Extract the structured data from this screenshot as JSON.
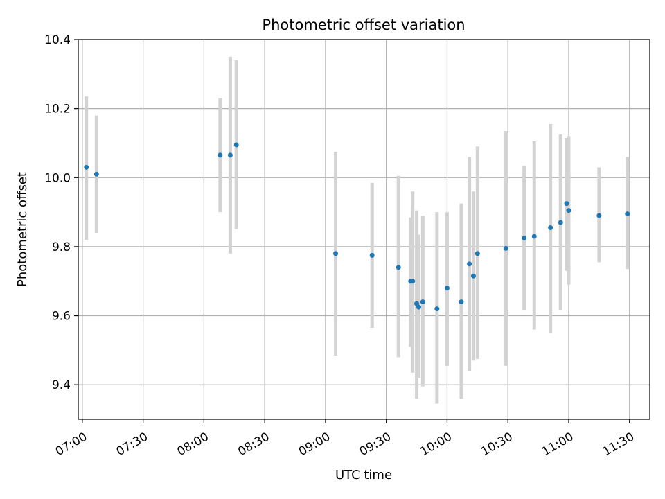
{
  "chart_data": {
    "type": "scatter",
    "title": "Photometric offset variation",
    "xlabel": "UTC time",
    "ylabel": "Photometric offset",
    "xlim": [
      "06:58",
      "11:40"
    ],
    "ylim": [
      9.3,
      10.4
    ],
    "x_ticks": [
      "07:00",
      "07:30",
      "08:00",
      "08:30",
      "09:00",
      "09:30",
      "10:00",
      "10:30",
      "11:00",
      "11:30"
    ],
    "y_ticks": [
      9.4,
      9.6,
      9.8,
      10.0,
      10.2,
      10.4
    ],
    "y_tick_labels": [
      "9.4",
      "9.6",
      "9.8",
      "10.0",
      "10.2",
      "10.4"
    ],
    "grid": true,
    "series": [
      {
        "marker_color": "#1f77b4",
        "errorbar_color": "#d3d3d3",
        "points": [
          {
            "x": "07:02",
            "y": 10.03,
            "ylow": 9.82,
            "yhigh": 10.235
          },
          {
            "x": "07:07",
            "y": 10.01,
            "ylow": 9.84,
            "yhigh": 10.18
          },
          {
            "x": "08:08",
            "y": 10.065,
            "ylow": 9.9,
            "yhigh": 10.23
          },
          {
            "x": "08:13",
            "y": 10.065,
            "ylow": 9.78,
            "yhigh": 10.35
          },
          {
            "x": "08:16",
            "y": 10.095,
            "ylow": 9.85,
            "yhigh": 10.34
          },
          {
            "x": "09:05",
            "y": 9.78,
            "ylow": 9.485,
            "yhigh": 10.075
          },
          {
            "x": "09:23",
            "y": 9.775,
            "ylow": 9.565,
            "yhigh": 9.985
          },
          {
            "x": "09:36",
            "y": 9.74,
            "ylow": 9.48,
            "yhigh": 10.005
          },
          {
            "x": "09:42",
            "y": 9.7,
            "ylow": 9.51,
            "yhigh": 9.885
          },
          {
            "x": "09:43",
            "y": 9.7,
            "ylow": 9.435,
            "yhigh": 9.96
          },
          {
            "x": "09:45",
            "y": 9.635,
            "ylow": 9.36,
            "yhigh": 9.905
          },
          {
            "x": "09:46",
            "y": 9.625,
            "ylow": 9.42,
            "yhigh": 9.835
          },
          {
            "x": "09:48",
            "y": 9.64,
            "ylow": 9.395,
            "yhigh": 9.89
          },
          {
            "x": "09:55",
            "y": 9.62,
            "ylow": 9.345,
            "yhigh": 9.9
          },
          {
            "x": "10:00",
            "y": 9.68,
            "ylow": 9.455,
            "yhigh": 9.9
          },
          {
            "x": "10:07",
            "y": 9.64,
            "ylow": 9.36,
            "yhigh": 9.925
          },
          {
            "x": "10:11",
            "y": 9.75,
            "ylow": 9.44,
            "yhigh": 10.06
          },
          {
            "x": "10:13",
            "y": 9.715,
            "ylow": 9.47,
            "yhigh": 9.96
          },
          {
            "x": "10:15",
            "y": 9.78,
            "ylow": 9.475,
            "yhigh": 10.09
          },
          {
            "x": "10:29",
            "y": 9.795,
            "ylow": 9.455,
            "yhigh": 10.135
          },
          {
            "x": "10:38",
            "y": 9.825,
            "ylow": 9.615,
            "yhigh": 10.035
          },
          {
            "x": "10:43",
            "y": 9.83,
            "ylow": 9.56,
            "yhigh": 10.105
          },
          {
            "x": "10:51",
            "y": 9.855,
            "ylow": 9.55,
            "yhigh": 10.155
          },
          {
            "x": "10:56",
            "y": 9.87,
            "ylow": 9.615,
            "yhigh": 10.125
          },
          {
            "x": "10:59",
            "y": 9.925,
            "ylow": 9.73,
            "yhigh": 10.115
          },
          {
            "x": "11:00",
            "y": 9.905,
            "ylow": 9.69,
            "yhigh": 10.12
          },
          {
            "x": "11:15",
            "y": 9.89,
            "ylow": 9.755,
            "yhigh": 10.03
          },
          {
            "x": "11:29",
            "y": 9.895,
            "ylow": 9.735,
            "yhigh": 10.06
          }
        ]
      }
    ]
  }
}
